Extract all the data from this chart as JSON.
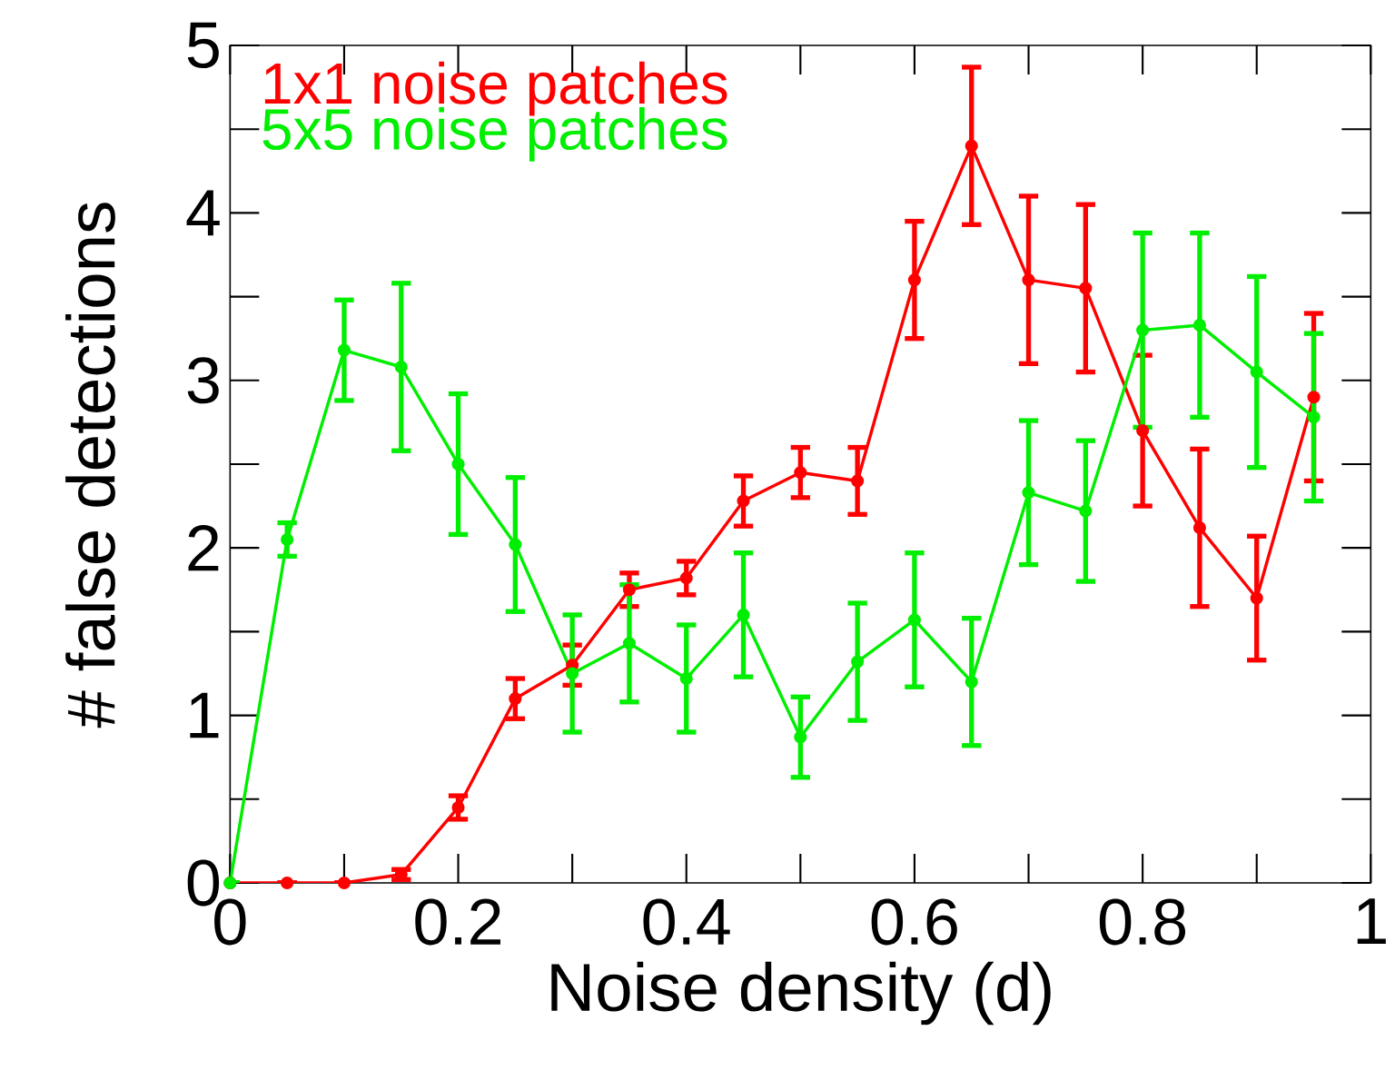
{
  "chart_data": {
    "type": "line",
    "xlabel": "Noise density (d)",
    "ylabel": "# false detections",
    "x": [
      0,
      0.05,
      0.1,
      0.15,
      0.2,
      0.25,
      0.3,
      0.35,
      0.4,
      0.45,
      0.5,
      0.55,
      0.6,
      0.65,
      0.7,
      0.75,
      0.8,
      0.85,
      0.9,
      0.95
    ],
    "series": [
      {
        "name": "1x1 noise patches",
        "color": "#ff0000",
        "values": [
          0,
          0,
          0,
          0.05,
          0.45,
          1.1,
          1.3,
          1.75,
          1.82,
          2.28,
          2.45,
          2.4,
          3.6,
          4.4,
          3.6,
          3.55,
          2.7,
          2.12,
          1.7,
          2.9
        ],
        "errors": [
          null,
          null,
          null,
          0.03,
          0.07,
          0.12,
          0.12,
          0.1,
          0.1,
          0.15,
          0.15,
          0.2,
          0.35,
          0.47,
          0.5,
          0.5,
          0.45,
          0.47,
          0.37,
          0.5
        ]
      },
      {
        "name": "5x5 noise patches",
        "color": "#00ee00",
        "values": [
          0,
          2.05,
          3.18,
          3.08,
          2.5,
          2.02,
          1.25,
          1.43,
          1.22,
          1.6,
          0.87,
          1.32,
          1.57,
          1.2,
          2.33,
          2.22,
          3.3,
          3.33,
          3.05,
          2.78
        ],
        "errors": [
          null,
          0.1,
          0.3,
          0.5,
          0.42,
          0.4,
          0.35,
          0.35,
          0.32,
          0.37,
          0.24,
          0.35,
          0.4,
          0.38,
          0.43,
          0.42,
          0.58,
          0.55,
          0.57,
          0.5
        ]
      }
    ],
    "xlim": [
      0,
      1
    ],
    "ylim": [
      0,
      5
    ],
    "xticks": [
      0,
      {
        "value": 0.2,
        "label": "0.2"
      },
      {
        "value": 0.4,
        "label": "0.4"
      },
      {
        "value": 0.6,
        "label": "0.6"
      },
      {
        "value": 0.8,
        "label": "0.8"
      },
      1
    ],
    "yticks": [
      0,
      1,
      2,
      3,
      4,
      5
    ],
    "grid": false,
    "legend": "top left",
    "marker": "circle",
    "line_style": "solid"
  }
}
